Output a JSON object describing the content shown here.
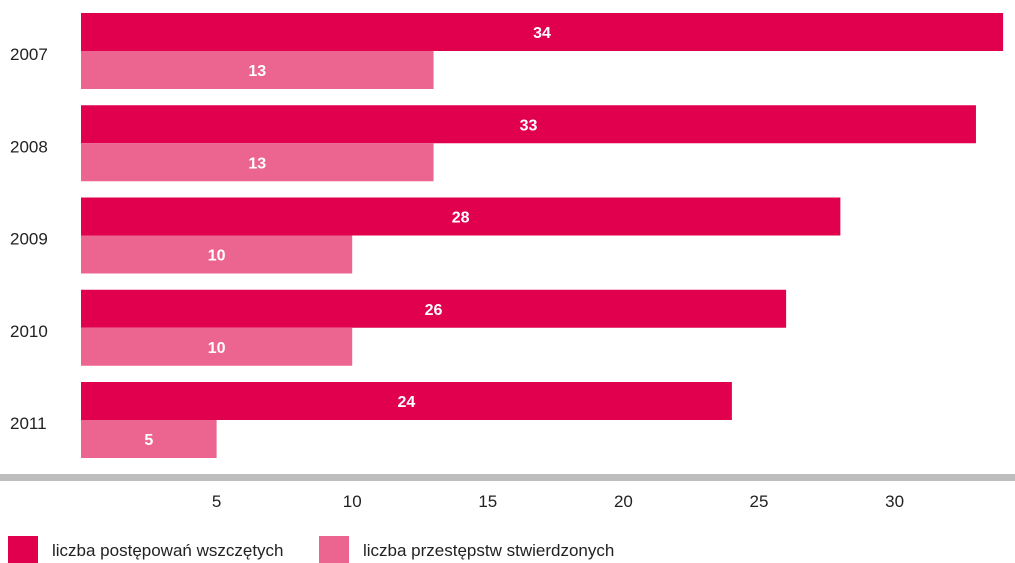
{
  "chart_data": {
    "type": "bar",
    "orientation": "horizontal",
    "categories": [
      "2007",
      "2008",
      "2009",
      "2010",
      "2011"
    ],
    "series": [
      {
        "name": "liczba postępowań wszczętych",
        "values": [
          34,
          33,
          28,
          26,
          24
        ],
        "color": "#e0004d"
      },
      {
        "name": "liczba przestępstw stwierdzonych",
        "values": [
          13,
          13,
          10,
          10,
          5
        ],
        "color": "#ec6590"
      }
    ],
    "xticks": [
      5,
      10,
      15,
      20,
      25,
      30
    ],
    "xlim": [
      0,
      34
    ],
    "grid": false,
    "legend_position": "bottom-left",
    "axis_color": "#bdbdbd"
  }
}
